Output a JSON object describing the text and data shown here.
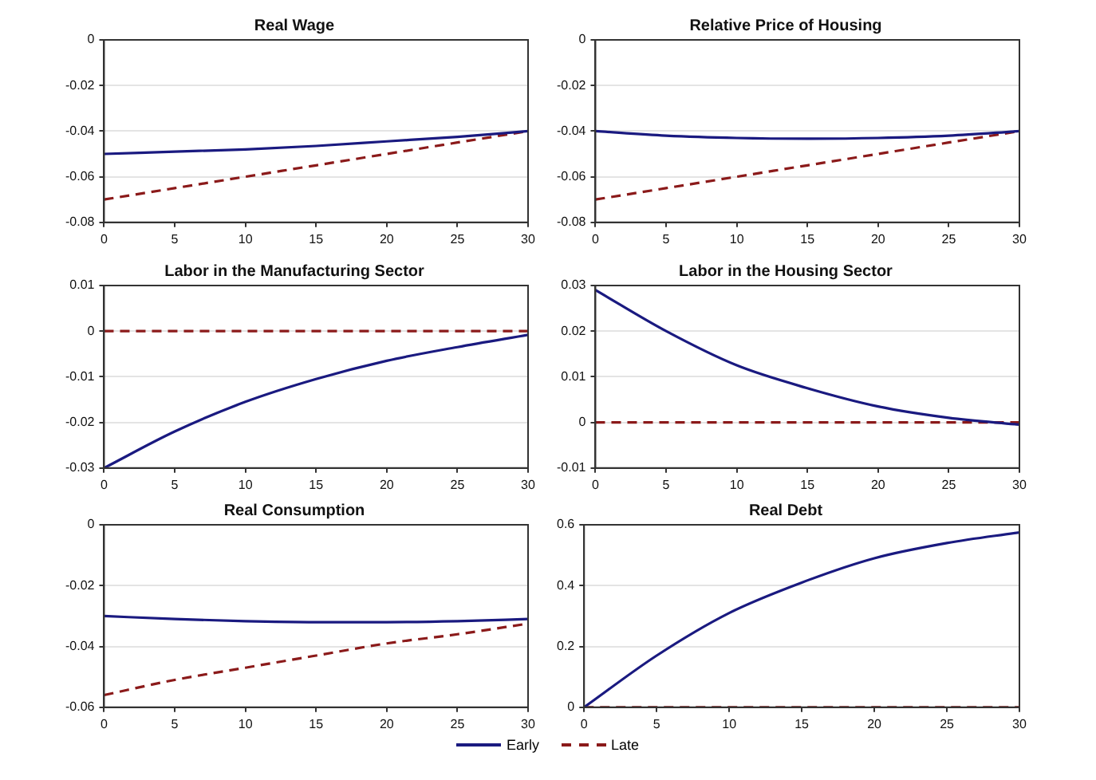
{
  "chart_data": [
    {
      "type": "line",
      "title": "Real Wage",
      "x": [
        0,
        5,
        10,
        15,
        20,
        25,
        30
      ],
      "xlim": [
        0,
        30
      ],
      "xticks": [
        0,
        5,
        10,
        15,
        20,
        25,
        30
      ],
      "ylim": [
        -0.08,
        0
      ],
      "yticks": [
        -0.08,
        -0.06,
        -0.04,
        -0.02,
        0
      ],
      "grid": "y",
      "legend": false,
      "series": [
        {
          "color": "#1a1a80",
          "line_style": "solid",
          "values": [
            -0.05,
            -0.049,
            -0.048,
            -0.0465,
            -0.0445,
            -0.0425,
            -0.04
          ]
        },
        {
          "color": "#8b1a1a",
          "line_style": "dashed",
          "values": [
            -0.07,
            -0.065,
            -0.06,
            -0.055,
            -0.05,
            -0.045,
            -0.04
          ]
        }
      ]
    },
    {
      "type": "line",
      "title": "Relative Price of Housing",
      "x": [
        0,
        5,
        10,
        15,
        20,
        25,
        30
      ],
      "xlim": [
        0,
        30
      ],
      "xticks": [
        0,
        5,
        10,
        15,
        20,
        25,
        30
      ],
      "ylim": [
        -0.08,
        0
      ],
      "yticks": [
        -0.08,
        -0.06,
        -0.04,
        -0.02,
        0
      ],
      "grid": "y",
      "legend": false,
      "series": [
        {
          "color": "#1a1a80",
          "line_style": "solid",
          "values": [
            -0.04,
            -0.042,
            -0.043,
            -0.0433,
            -0.043,
            -0.042,
            -0.04
          ]
        },
        {
          "color": "#8b1a1a",
          "line_style": "dashed",
          "values": [
            -0.07,
            -0.065,
            -0.06,
            -0.055,
            -0.05,
            -0.045,
            -0.04
          ]
        }
      ]
    },
    {
      "type": "line",
      "title": "Labor in the Manufacturing Sector",
      "x": [
        0,
        5,
        10,
        15,
        20,
        25,
        30
      ],
      "xlim": [
        0,
        30
      ],
      "xticks": [
        0,
        5,
        10,
        15,
        20,
        25,
        30
      ],
      "ylim": [
        -0.03,
        0.01
      ],
      "yticks": [
        -0.03,
        -0.02,
        -0.01,
        0,
        0.01
      ],
      "grid": "y",
      "legend": false,
      "series": [
        {
          "color": "#1a1a80",
          "line_style": "solid",
          "values": [
            -0.03,
            -0.022,
            -0.0155,
            -0.0105,
            -0.0065,
            -0.0035,
            -0.0008
          ]
        },
        {
          "color": "#8b1a1a",
          "line_style": "dashed",
          "values": [
            0,
            0,
            0,
            0,
            0,
            0,
            0
          ]
        }
      ]
    },
    {
      "type": "line",
      "title": "Labor in the Housing Sector",
      "x": [
        0,
        5,
        10,
        15,
        20,
        25,
        30
      ],
      "xlim": [
        0,
        30
      ],
      "xticks": [
        0,
        5,
        10,
        15,
        20,
        25,
        30
      ],
      "ylim": [
        -0.01,
        0.03
      ],
      "yticks": [
        -0.01,
        0,
        0.01,
        0.02,
        0.03
      ],
      "grid": "y",
      "legend": false,
      "series": [
        {
          "color": "#1a1a80",
          "line_style": "solid",
          "values": [
            0.029,
            0.02,
            0.0125,
            0.0075,
            0.0035,
            0.001,
            -0.0005
          ]
        },
        {
          "color": "#8b1a1a",
          "line_style": "dashed",
          "values": [
            0,
            0,
            0,
            0,
            0,
            0,
            0
          ]
        }
      ]
    },
    {
      "type": "line",
      "title": "Real Consumption",
      "x": [
        0,
        5,
        10,
        15,
        20,
        25,
        30
      ],
      "xlim": [
        0,
        30
      ],
      "xticks": [
        0,
        5,
        10,
        15,
        20,
        25,
        30
      ],
      "ylim": [
        -0.06,
        0
      ],
      "yticks": [
        -0.06,
        -0.04,
        -0.02,
        0
      ],
      "grid": "y",
      "legend": false,
      "series": [
        {
          "color": "#1a1a80",
          "line_style": "solid",
          "values": [
            -0.03,
            -0.031,
            -0.0317,
            -0.032,
            -0.032,
            -0.0317,
            -0.031
          ]
        },
        {
          "color": "#8b1a1a",
          "line_style": "dashed",
          "values": [
            -0.056,
            -0.051,
            -0.047,
            -0.043,
            -0.039,
            -0.036,
            -0.0325
          ]
        }
      ]
    },
    {
      "type": "line",
      "title": "Real Debt",
      "x": [
        0,
        5,
        10,
        15,
        20,
        25,
        30
      ],
      "xlim": [
        0,
        30
      ],
      "xticks": [
        0,
        5,
        10,
        15,
        20,
        25,
        30
      ],
      "ylim": [
        0,
        0.6
      ],
      "yticks": [
        0,
        0.2,
        0.4,
        0.6
      ],
      "grid": "y",
      "legend": "bottom",
      "series": [
        {
          "name": "Early",
          "color": "#1a1a80",
          "line_style": "solid",
          "values": [
            0,
            0.17,
            0.31,
            0.41,
            0.49,
            0.54,
            0.575
          ]
        },
        {
          "name": "Late",
          "color": "#8b1a1a",
          "line_style": "dashed",
          "values": [
            0,
            0,
            0,
            0,
            0,
            0,
            0
          ]
        }
      ]
    }
  ]
}
